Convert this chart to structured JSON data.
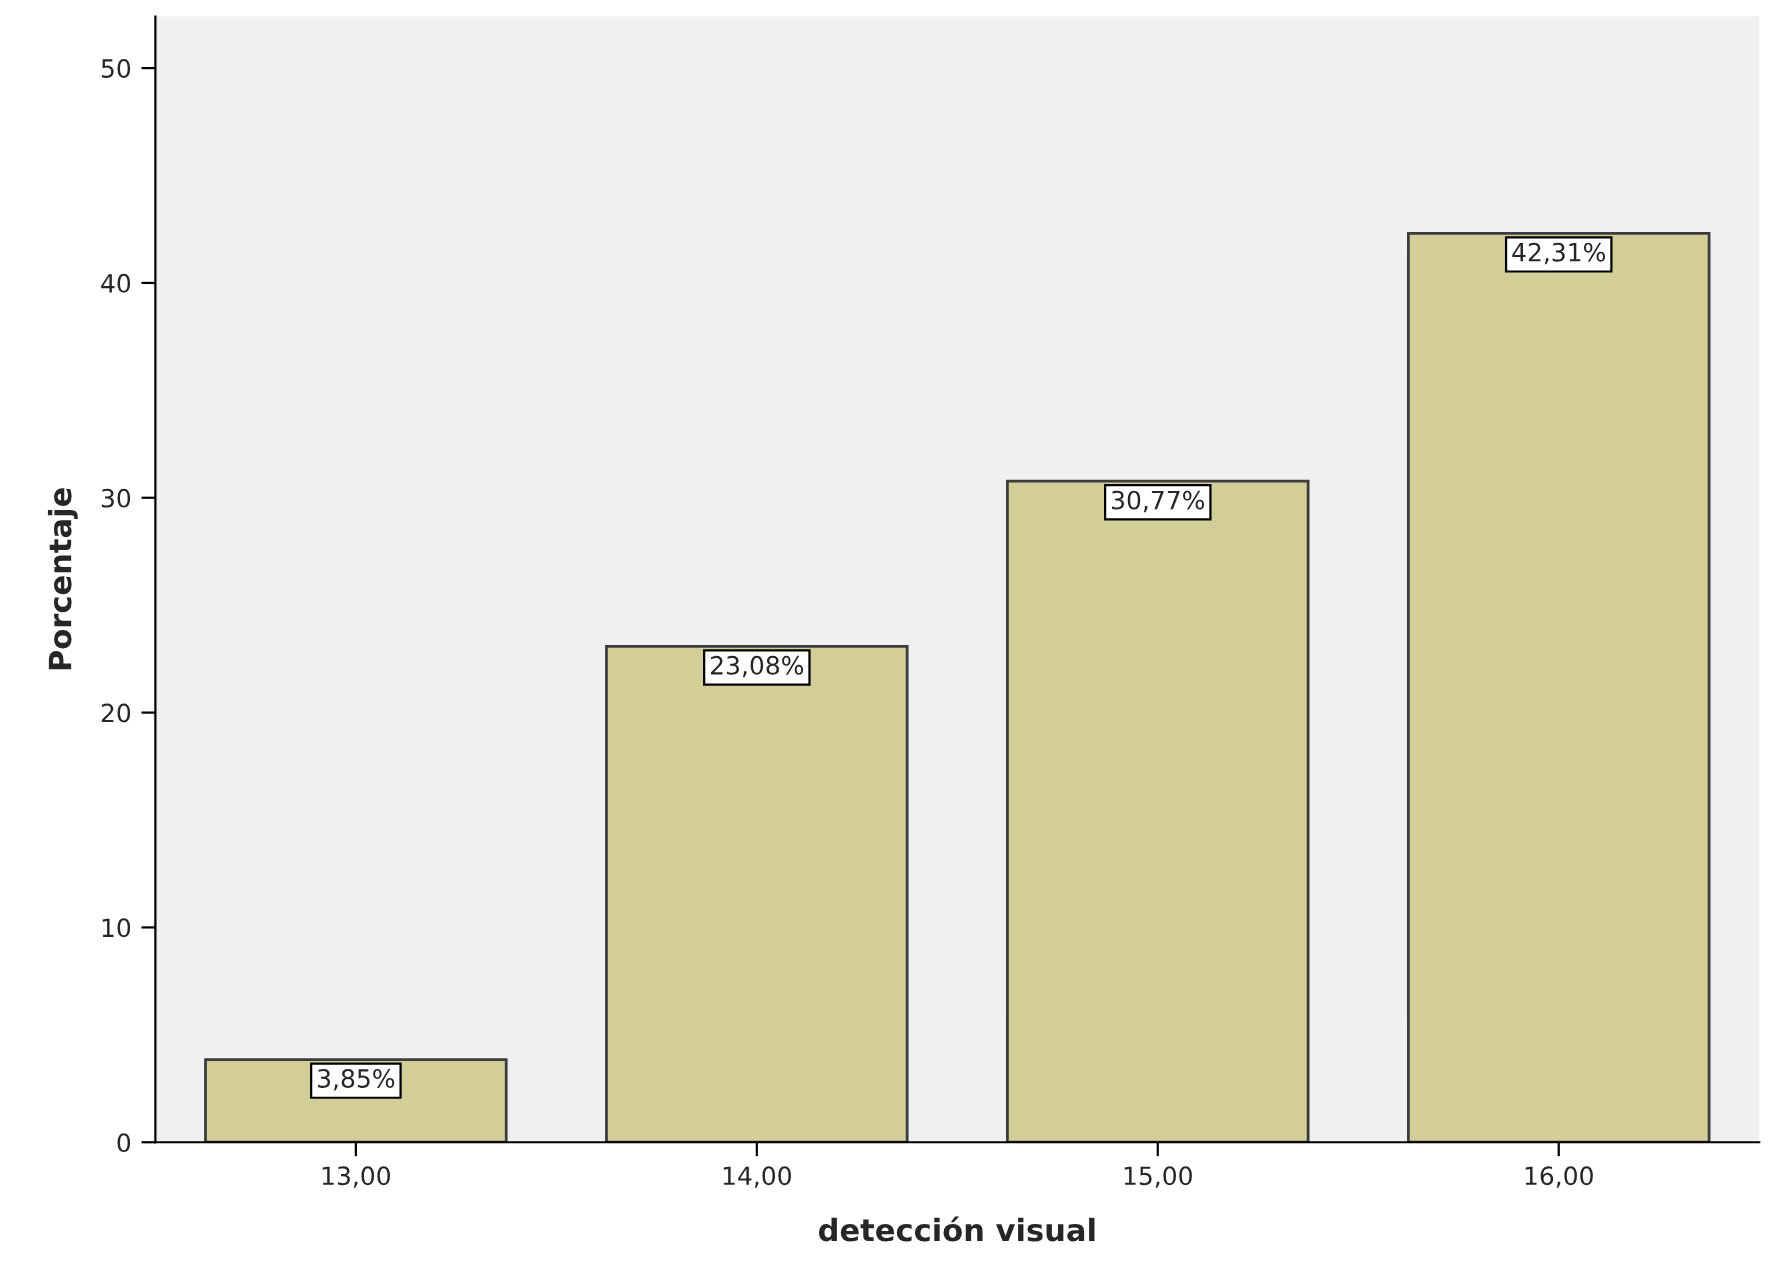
{
  "chart_data": {
    "type": "bar",
    "xlabel": "detección visual",
    "ylabel": "Porcentaje",
    "categories": [
      "13,00",
      "14,00",
      "15,00",
      "16,00"
    ],
    "values": [
      3.85,
      23.08,
      30.77,
      42.31
    ],
    "value_labels": [
      "3,85%",
      "23,08%",
      "30,77%",
      "42,31%"
    ],
    "color": "#d3ce97",
    "ylim": [
      0,
      52.4
    ],
    "yticks": [
      0,
      10,
      20,
      30,
      40,
      50
    ],
    "grid": false,
    "legend": false
  }
}
